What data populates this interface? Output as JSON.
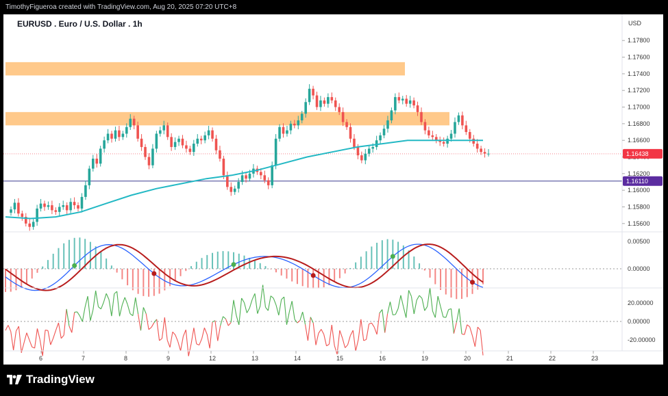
{
  "header": {
    "attribution": "TimothyFigueroa created with TradingView.com, Aug 20, 2025 07:20 UTC+8"
  },
  "brand": {
    "logo_text": "TradingView",
    "logo_icon": "tradingview-logo-icon"
  },
  "colors": {
    "up": "#26a69a",
    "down": "#ef5350",
    "ema": "#22b8c4",
    "zone": "#ffc98a",
    "price_badge": "#f23645",
    "line_badge": "#5b2ca0",
    "osc_fast": "#2962ff",
    "osc_slow_up": "#4caf50",
    "osc_slow_down": "#b71c1c",
    "cci_up": "#4caf50",
    "cci_down": "#ef5350"
  },
  "chart_data": [
    {
      "type": "candlestick",
      "title": "EURUSD . Euro / U.S. Dollar . 1h",
      "currency": "USD",
      "ylim": [
        1.155,
        1.1795
      ],
      "x_labels": [
        "6",
        "7",
        "8",
        "9",
        "12",
        "13",
        "14",
        "15",
        "16",
        "19",
        "20",
        "21",
        "22",
        "23"
      ],
      "y_ticks": [
        "1.17800",
        "1.17600",
        "1.17400",
        "1.17200",
        "1.17000",
        "1.16800",
        "1.16600",
        "1.16400",
        "1.16200",
        "1.16000",
        "1.15800",
        "1.15600"
      ],
      "current_price": {
        "label": "1.16438",
        "value": 1.16438
      },
      "horizontal_line": {
        "label": "1.16110",
        "value": 1.1611
      },
      "resistance_zones": [
        {
          "from": 1.1738,
          "to": 1.1754,
          "x_end_index": 191
        },
        {
          "from": 1.1678,
          "to": 1.1694,
          "x_end_index": 210
        }
      ],
      "closes": [
        1.1577,
        1.1585,
        1.1572,
        1.1568,
        1.156,
        1.1556,
        1.1562,
        1.1578,
        1.1584,
        1.158,
        1.1582,
        1.1576,
        1.1574,
        1.158,
        1.1582,
        1.1576,
        1.1586,
        1.1582,
        1.1578,
        1.1592,
        1.1606,
        1.1626,
        1.1638,
        1.1632,
        1.165,
        1.166,
        1.1668,
        1.1662,
        1.1672,
        1.1664,
        1.1668,
        1.1676,
        1.1686,
        1.1678,
        1.1662,
        1.1652,
        1.164,
        1.163,
        1.165,
        1.1668,
        1.1672,
        1.1678,
        1.1664,
        1.1652,
        1.1658,
        1.1662,
        1.1654,
        1.165,
        1.1646,
        1.1656,
        1.1662,
        1.166,
        1.1666,
        1.1672,
        1.1662,
        1.1648,
        1.1638,
        1.1618,
        1.1604,
        1.1598,
        1.1602,
        1.161,
        1.1618,
        1.1614,
        1.162,
        1.1626,
        1.1622,
        1.1618,
        1.1612,
        1.1606,
        1.163,
        1.1662,
        1.1676,
        1.1668,
        1.1672,
        1.168,
        1.1678,
        1.1684,
        1.1692,
        1.1706,
        1.1722,
        1.1714,
        1.17,
        1.1708,
        1.1704,
        1.1712,
        1.1708,
        1.17,
        1.1694,
        1.1682,
        1.1676,
        1.1662,
        1.1652,
        1.1642,
        1.1636,
        1.1644,
        1.165,
        1.1652,
        1.166,
        1.1666,
        1.1674,
        1.1684,
        1.1696,
        1.1712,
        1.1708,
        1.171,
        1.1704,
        1.1708,
        1.1702,
        1.1694,
        1.1682,
        1.1672,
        1.1666,
        1.1664,
        1.166,
        1.1658,
        1.1656,
        1.1662,
        1.1668,
        1.1682,
        1.169,
        1.1678,
        1.167,
        1.1662,
        1.1656,
        1.165,
        1.1646,
        1.1644,
        1.1644
      ],
      "ema_values": [
        1.1568,
        1.1566,
        1.1568,
        1.1574,
        1.1584,
        1.1594,
        1.1602,
        1.1608,
        1.1614,
        1.1618,
        1.1624,
        1.1632,
        1.164,
        1.1646,
        1.1652,
        1.1656,
        1.166,
        1.166,
        1.166,
        1.166
      ]
    },
    {
      "type": "line",
      "name": "oscillator",
      "y_ticks": [
        "0.00500",
        "0.00000"
      ],
      "ylim": [
        -0.0035,
        0.0065
      ]
    },
    {
      "type": "line",
      "name": "cci",
      "y_ticks": [
        "20.00000",
        "0.00000",
        "-20.00000"
      ],
      "ylim": [
        -32,
        35
      ]
    }
  ]
}
